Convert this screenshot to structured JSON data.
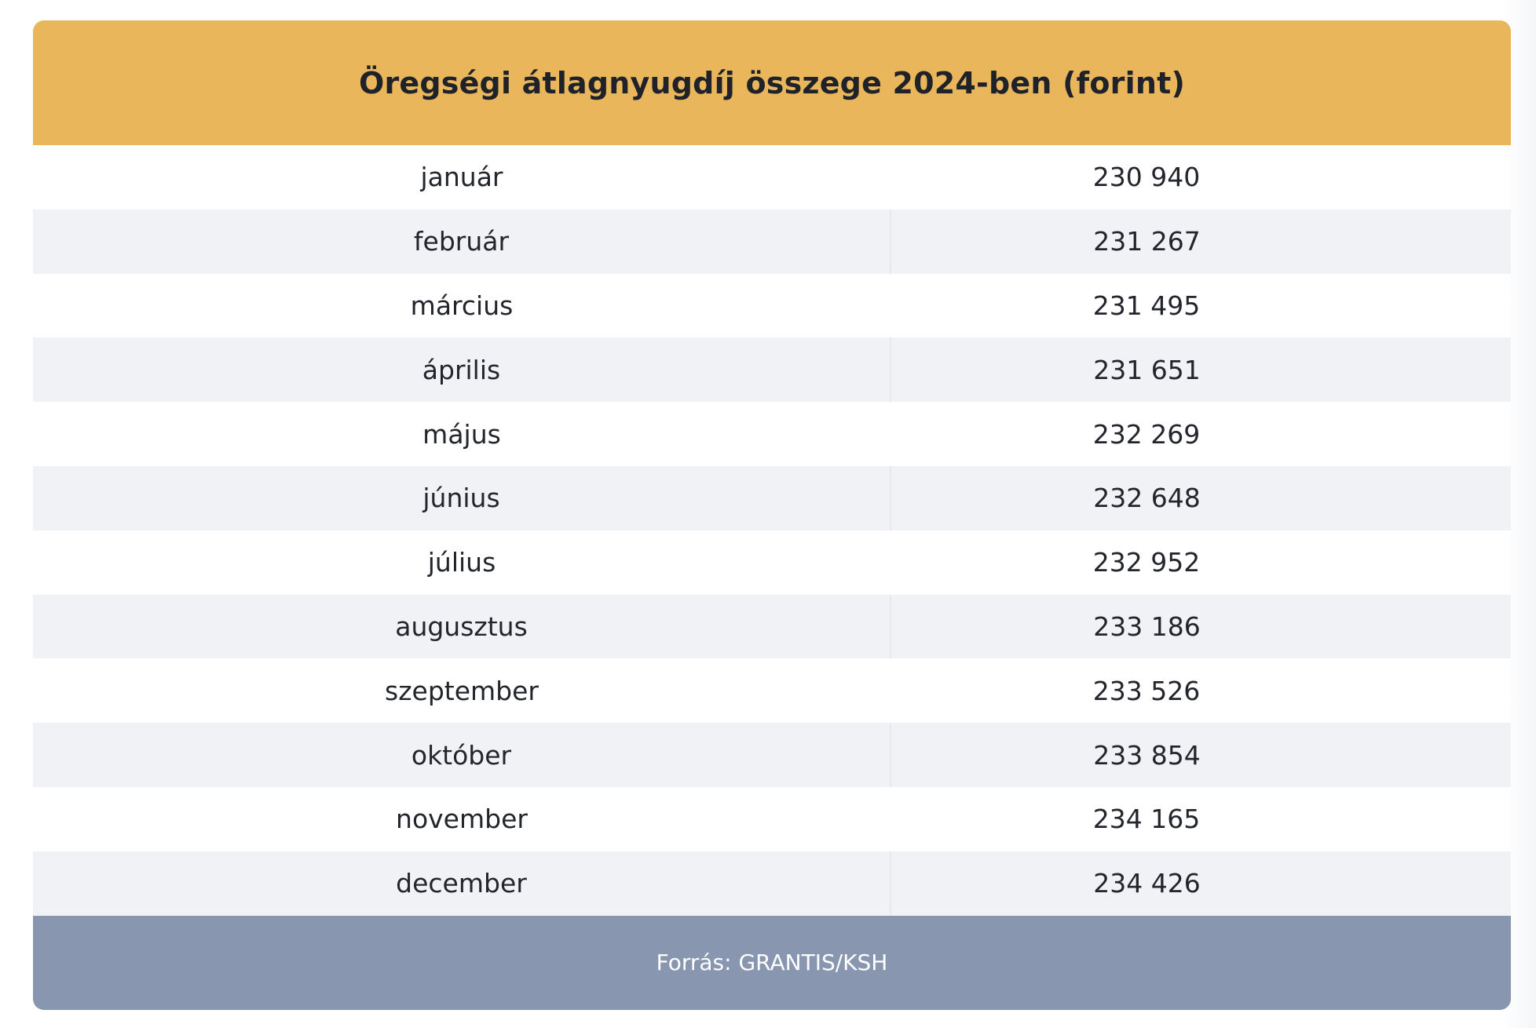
{
  "table": {
    "title": "Öregségi átlagnyugdíj összege 2024-ben (forint)",
    "rows": [
      {
        "month": "január",
        "value": "230 940"
      },
      {
        "month": "február",
        "value": "231 267"
      },
      {
        "month": "március",
        "value": "231 495"
      },
      {
        "month": "április",
        "value": "231 651"
      },
      {
        "month": "május",
        "value": "232 269"
      },
      {
        "month": "június",
        "value": "232 648"
      },
      {
        "month": "július",
        "value": "232 952"
      },
      {
        "month": "augusztus",
        "value": "233 186"
      },
      {
        "month": "szeptember",
        "value": "233 526"
      },
      {
        "month": "október",
        "value": "233 854"
      },
      {
        "month": "november",
        "value": "234 165"
      },
      {
        "month": "december",
        "value": "234 426"
      }
    ],
    "source": "Forrás: GRANTIS/KSH"
  },
  "colors": {
    "header_background": "#e9b65b",
    "footer_background": "#8896b0",
    "row_alternate_background": "#f1f2f6",
    "text": "#22252b"
  }
}
